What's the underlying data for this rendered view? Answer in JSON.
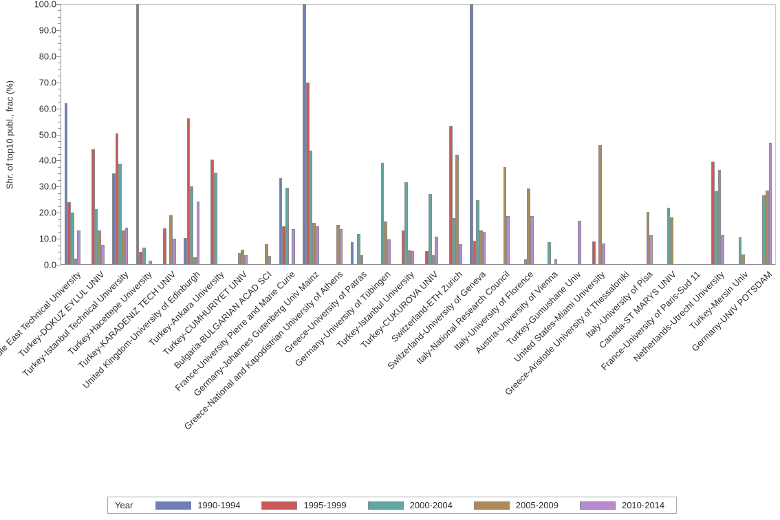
{
  "y_axis": {
    "title": "Shr. of top10 publ., frac (%)",
    "tick_labels": [
      "0.0",
      "10.0",
      "20.0",
      "30.0",
      "40.0",
      "50.0",
      "60.0",
      "70.0",
      "80.0",
      "90.0",
      "100.0"
    ]
  },
  "legend": {
    "title": "Year"
  },
  "colors": {
    "series_1990": "#6F7FB5",
    "series_1995": "#C75B58",
    "series_2000": "#63A6A0",
    "series_2005": "#AC8B5B",
    "series_2010": "#B58CCB",
    "axis_line": "#8d8d92",
    "frame_line": "#c9cacd",
    "bar_border": "#8a8a8e",
    "legend_border": "#a9a9af",
    "text": "#2d2d30"
  },
  "chart_data": {
    "type": "bar",
    "title": "",
    "xlabel": "",
    "ylabel": "Shr. of top10 publ., frac (%)",
    "ylim": [
      0,
      100
    ],
    "ytick_step": 10,
    "minor_ticks_per_major": 3,
    "grid": false,
    "legend_position": "bottom",
    "legend_title": "Year",
    "categories": [
      "Turkey-Middle East Technical University",
      "Turkey-DOKUZ EYLUL UNIV",
      "Turkey-Istanbul Technical University",
      "Turkey-Hacettepe University",
      "Turkey-KARADENIZ TECH UNIV",
      "United Kingdom-University of Edinburgh",
      "Turkey-Ankara University",
      "Turkey-CUMHURIYET UNIV",
      "Bulgaria-BULGARIAN ACAD SCI",
      "France-University Pierre and Marie Curie",
      "Germany-Johannes Gutenberg Univ Mainz",
      "Greece-National and Kapodistrian University of Athens",
      "Greece-University of Patras",
      "Germany-University of Tübingen",
      "Turkey-Istanbul University",
      "Turkey-CUKUROVA UNIV",
      "Switzerland-ETH Zurich",
      "Switzerland-University of Geneva",
      "Italy-National Research Council",
      "Italy-University of Florence",
      "Austria-University of Vienna",
      "Turkey-Gumushane Univ",
      "United States-Miami University",
      "Greece-Aristotle University of Thessaloniki",
      "Italy-University of Pisa",
      "Canada-ST MARYS UNIV",
      "France-University of Paris-Sud 11",
      "Netherlands-Utrecht University",
      "Turkey-Mersin Univ",
      "Germany-UNIV POTSDAM"
    ],
    "series": [
      {
        "name": "1990-1994",
        "color": "#6F7FB5",
        "values": [
          62.0,
          0,
          35.2,
          100,
          0,
          10.4,
          0,
          0,
          0,
          33.2,
          100,
          0,
          8.6,
          0,
          0,
          0,
          0,
          100,
          0,
          0,
          0,
          0,
          0,
          0,
          0,
          0,
          0,
          0,
          0,
          0
        ]
      },
      {
        "name": "1995-1999",
        "color": "#C75B58",
        "values": [
          24.0,
          44.4,
          50.3,
          5.0,
          14.0,
          56.3,
          40.4,
          0,
          0,
          14.8,
          70.0,
          0,
          0,
          0,
          13.2,
          5.2,
          53.3,
          9.3,
          0,
          0,
          0,
          0,
          9.1,
          0,
          0,
          0,
          0,
          39.6,
          0,
          0
        ]
      },
      {
        "name": "2000-2004",
        "color": "#63A6A0",
        "values": [
          20.0,
          21.5,
          38.8,
          6.6,
          0,
          30.2,
          35.4,
          4.6,
          0,
          29.5,
          43.8,
          0,
          11.9,
          39.0,
          31.7,
          27.2,
          17.9,
          24.9,
          0,
          2.1,
          8.8,
          0,
          0,
          0,
          0,
          21.8,
          0,
          28.2,
          10.6,
          26.6
        ]
      },
      {
        "name": "2005-2009",
        "color": "#AC8B5B",
        "values": [
          2.5,
          13.1,
          13.2,
          0,
          19.0,
          2.8,
          0,
          5.9,
          8.0,
          0,
          16.2,
          15.4,
          3.7,
          16.5,
          5.6,
          3.6,
          42.3,
          13.1,
          37.4,
          29.3,
          0,
          0,
          46.0,
          0,
          20.3,
          18.1,
          0,
          36.3,
          3.9,
          28.6
        ]
      },
      {
        "name": "2010-2014",
        "color": "#B58CCB",
        "values": [
          13.3,
          7.6,
          14.3,
          1.5,
          10.0,
          24.3,
          0,
          3.6,
          3.4,
          13.8,
          14.7,
          13.8,
          0,
          9.8,
          5.3,
          10.7,
          7.8,
          12.7,
          18.7,
          18.7,
          2.1,
          16.8,
          8.2,
          0,
          11.3,
          0,
          0,
          11.4,
          0,
          46.7
        ]
      }
    ]
  }
}
